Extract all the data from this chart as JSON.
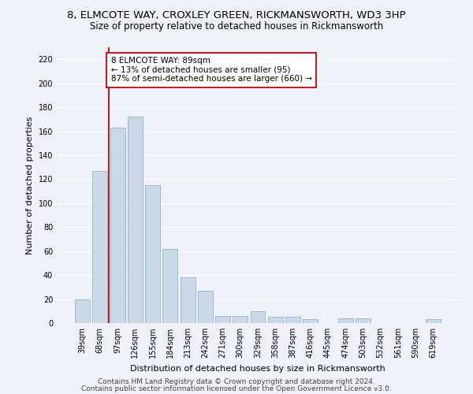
{
  "title": "8, ELMCOTE WAY, CROXLEY GREEN, RICKMANSWORTH, WD3 3HP",
  "subtitle": "Size of property relative to detached houses in Rickmansworth",
  "xlabel": "Distribution of detached houses by size in Rickmansworth",
  "ylabel": "Number of detached properties",
  "categories": [
    "39sqm",
    "68sqm",
    "97sqm",
    "126sqm",
    "155sqm",
    "184sqm",
    "213sqm",
    "242sqm",
    "271sqm",
    "300sqm",
    "329sqm",
    "358sqm",
    "387sqm",
    "416sqm",
    "445sqm",
    "474sqm",
    "503sqm",
    "532sqm",
    "561sqm",
    "590sqm",
    "619sqm"
  ],
  "values": [
    20,
    127,
    163,
    172,
    115,
    62,
    38,
    27,
    6,
    6,
    10,
    5,
    5,
    3,
    0,
    4,
    4,
    0,
    0,
    0,
    3
  ],
  "bar_color": "#c9d9e8",
  "bar_edge_color": "#a0b8d0",
  "vline_x": 1.5,
  "vline_color": "#cc0000",
  "annotation_line1": "8 ELMCOTE WAY: 89sqm",
  "annotation_line2": "← 13% of detached houses are smaller (95)",
  "annotation_line3": "87% of semi-detached houses are larger (660) →",
  "annotation_box_color": "#ffffff",
  "annotation_box_edge_color": "#cc0000",
  "ylim": [
    0,
    230
  ],
  "yticks": [
    0,
    20,
    40,
    60,
    80,
    100,
    120,
    140,
    160,
    180,
    200,
    220
  ],
  "footer1": "Contains HM Land Registry data © Crown copyright and database right 2024.",
  "footer2": "Contains public sector information licensed under the Open Government Licence v3.0.",
  "background_color": "#eef2f8",
  "grid_color": "#ffffff",
  "title_fontsize": 9.5,
  "subtitle_fontsize": 8.5,
  "axis_label_fontsize": 8,
  "tick_fontsize": 7,
  "annotation_fontsize": 7.5,
  "footer_fontsize": 6.5
}
